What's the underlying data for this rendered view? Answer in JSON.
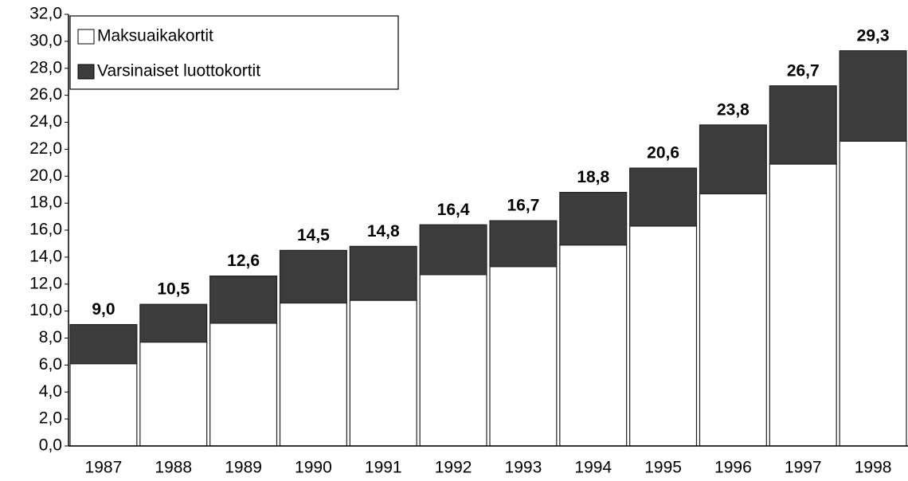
{
  "chart_data": {
    "type": "stacked_bar",
    "categories": [
      "1987",
      "1988",
      "1989",
      "1990",
      "1991",
      "1992",
      "1993",
      "1994",
      "1995",
      "1996",
      "1997",
      "1998"
    ],
    "series": [
      {
        "name": "Maksuaikakortit",
        "color": "#ffffff",
        "values": [
          6.1,
          7.7,
          9.1,
          10.6,
          10.8,
          12.7,
          13.3,
          14.9,
          16.3,
          18.7,
          20.9,
          22.6
        ]
      },
      {
        "name": "Varsinaiset luottokortit",
        "color": "#3c3c3c",
        "values": [
          2.9,
          2.8,
          3.5,
          3.9,
          4.0,
          3.7,
          3.4,
          3.9,
          4.3,
          5.1,
          5.8,
          6.7
        ]
      }
    ],
    "totals": [
      9.0,
      10.5,
      12.6,
      14.5,
      14.8,
      16.4,
      16.7,
      18.8,
      20.6,
      23.8,
      26.7,
      29.3
    ],
    "total_labels": [
      "9,0",
      "10,5",
      "12,6",
      "14,5",
      "14,8",
      "16,4",
      "16,7",
      "18,8",
      "20,6",
      "23,8",
      "26,7",
      "29,3"
    ],
    "ylim": [
      0,
      32
    ],
    "yticks": [
      {
        "value": 0,
        "label": "0,0"
      },
      {
        "value": 2,
        "label": "2,0"
      },
      {
        "value": 4,
        "label": "4,0"
      },
      {
        "value": 6,
        "label": "6,0"
      },
      {
        "value": 8,
        "label": "8,0"
      },
      {
        "value": 10,
        "label": "10,0"
      },
      {
        "value": 12,
        "label": "12,0"
      },
      {
        "value": 14,
        "label": "14,0"
      },
      {
        "value": 16,
        "label": "16,0"
      },
      {
        "value": 18,
        "label": "18,0"
      },
      {
        "value": 20,
        "label": "20,0"
      },
      {
        "value": 22,
        "label": "22,0"
      },
      {
        "value": 24,
        "label": "24,0"
      },
      {
        "value": 26,
        "label": "26,0"
      },
      {
        "value": 28,
        "label": "28,0"
      },
      {
        "value": 30,
        "label": "30,0"
      },
      {
        "value": 32,
        "label": "32,0"
      }
    ],
    "legend": "top-left"
  }
}
